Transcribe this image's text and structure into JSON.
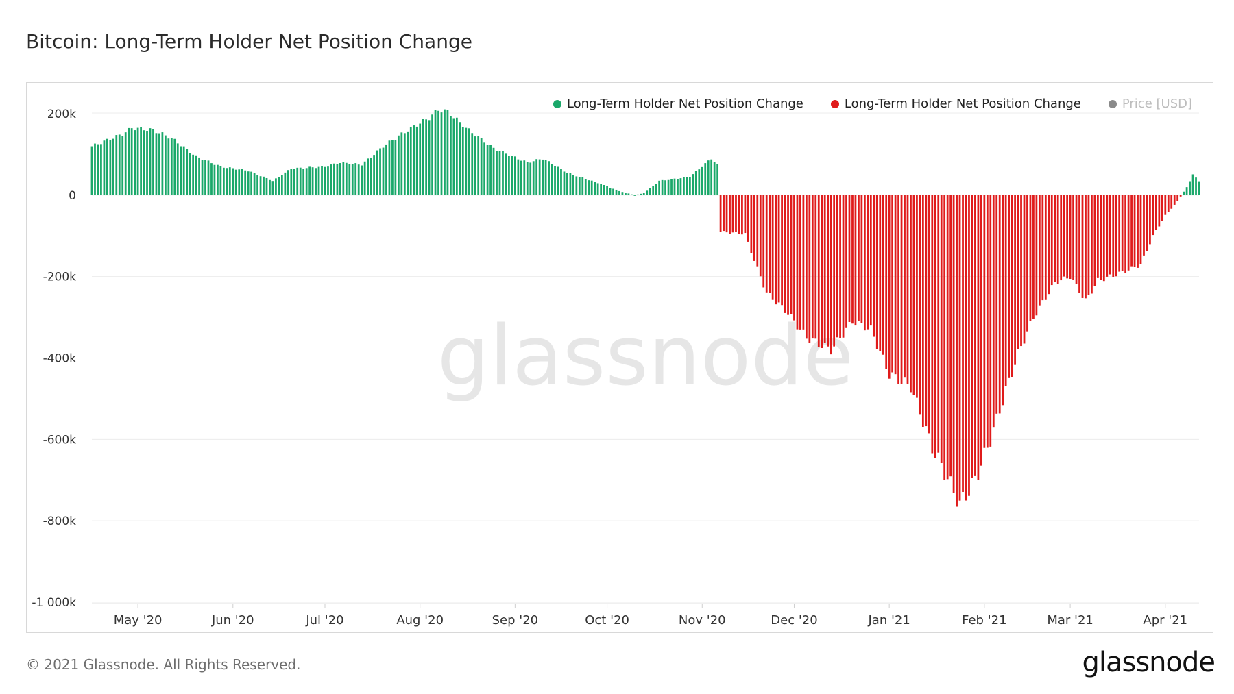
{
  "page": {
    "title": "Bitcoin: Long-Term Holder Net Position Change",
    "copyright": "© 2021 Glassnode. All Rights Reserved.",
    "brand": "glassnode",
    "watermark": "glassnode"
  },
  "legend": [
    {
      "label": "Long-Term Holder Net Position Change",
      "color": "#1aa86a"
    },
    {
      "label": "Long-Term Holder Net Position Change",
      "color": "#e01b1b"
    },
    {
      "label": "Price [USD]",
      "color": "#8a8a8a"
    }
  ],
  "chart_data": {
    "type": "bar",
    "title": "Bitcoin: Long-Term Holder Net Position Change",
    "x_start": "2020-04-16",
    "x_end": "2021-04-12",
    "ylim": [
      -1000000,
      200000
    ],
    "y_ticks": [
      {
        "value": 200000,
        "label": "200k"
      },
      {
        "value": 0,
        "label": "0"
      },
      {
        "value": -200000,
        "label": "-200k"
      },
      {
        "value": -400000,
        "label": "-400k"
      },
      {
        "value": -600000,
        "label": "-600k"
      },
      {
        "value": -800000,
        "label": "-800k"
      },
      {
        "value": -1000000,
        "label": "-1 000k"
      }
    ],
    "x_ticks": [
      {
        "date": "2020-05-01",
        "label": "May '20"
      },
      {
        "date": "2020-06-01",
        "label": "Jun '20"
      },
      {
        "date": "2020-07-01",
        "label": "Jul '20"
      },
      {
        "date": "2020-08-01",
        "label": "Aug '20"
      },
      {
        "date": "2020-09-01",
        "label": "Sep '20"
      },
      {
        "date": "2020-10-01",
        "label": "Oct '20"
      },
      {
        "date": "2020-11-01",
        "label": "Nov '20"
      },
      {
        "date": "2020-12-01",
        "label": "Dec '20"
      },
      {
        "date": "2021-01-01",
        "label": "Jan '21"
      },
      {
        "date": "2021-02-01",
        "label": "Feb '21"
      },
      {
        "date": "2021-03-01",
        "label": "Mar '21"
      },
      {
        "date": "2021-04-01",
        "label": "Apr '21"
      }
    ],
    "positive_color": "#1aa86a",
    "negative_color": "#e01b1b",
    "grid": true,
    "legend_position": "top-right",
    "keypoints": [
      {
        "date": "2020-04-16",
        "value": 120000
      },
      {
        "date": "2020-04-26",
        "value": 150000
      },
      {
        "date": "2020-04-29",
        "value": 165000
      },
      {
        "date": "2020-05-06",
        "value": 160000
      },
      {
        "date": "2020-05-12",
        "value": 140000
      },
      {
        "date": "2020-05-20",
        "value": 95000
      },
      {
        "date": "2020-05-28",
        "value": 70000
      },
      {
        "date": "2020-06-06",
        "value": 60000
      },
      {
        "date": "2020-06-14",
        "value": 35000
      },
      {
        "date": "2020-06-20",
        "value": 65000
      },
      {
        "date": "2020-07-01",
        "value": 70000
      },
      {
        "date": "2020-07-06",
        "value": 80000
      },
      {
        "date": "2020-07-13",
        "value": 75000
      },
      {
        "date": "2020-07-20",
        "value": 120000
      },
      {
        "date": "2020-07-28",
        "value": 160000
      },
      {
        "date": "2020-08-04",
        "value": 190000
      },
      {
        "date": "2020-08-07",
        "value": 210000
      },
      {
        "date": "2020-08-10",
        "value": 205000
      },
      {
        "date": "2020-08-16",
        "value": 165000
      },
      {
        "date": "2020-08-25",
        "value": 115000
      },
      {
        "date": "2020-09-05",
        "value": 80000
      },
      {
        "date": "2020-09-10",
        "value": 90000
      },
      {
        "date": "2020-09-18",
        "value": 55000
      },
      {
        "date": "2020-09-28",
        "value": 30000
      },
      {
        "date": "2020-10-05",
        "value": 10000
      },
      {
        "date": "2020-10-10",
        "value": 0
      },
      {
        "date": "2020-10-13",
        "value": 5000
      },
      {
        "date": "2020-10-18",
        "value": 35000
      },
      {
        "date": "2020-10-28",
        "value": 45000
      },
      {
        "date": "2020-11-04",
        "value": 90000
      },
      {
        "date": "2020-11-06",
        "value": 75000
      },
      {
        "date": "2020-11-07",
        "value": -90000
      },
      {
        "date": "2020-11-15",
        "value": -95000
      },
      {
        "date": "2020-11-18",
        "value": -160000
      },
      {
        "date": "2020-11-22",
        "value": -240000
      },
      {
        "date": "2020-11-29",
        "value": -290000
      },
      {
        "date": "2020-12-05",
        "value": -350000
      },
      {
        "date": "2020-12-13",
        "value": -380000
      },
      {
        "date": "2020-12-20",
        "value": -310000
      },
      {
        "date": "2020-12-26",
        "value": -330000
      },
      {
        "date": "2021-01-01",
        "value": -440000
      },
      {
        "date": "2021-01-08",
        "value": -470000
      },
      {
        "date": "2021-01-15",
        "value": -620000
      },
      {
        "date": "2021-01-19",
        "value": -680000
      },
      {
        "date": "2021-01-24",
        "value": -760000
      },
      {
        "date": "2021-01-29",
        "value": -700000
      },
      {
        "date": "2021-02-03",
        "value": -600000
      },
      {
        "date": "2021-02-08",
        "value": -480000
      },
      {
        "date": "2021-02-12",
        "value": -390000
      },
      {
        "date": "2021-02-17",
        "value": -300000
      },
      {
        "date": "2021-02-24",
        "value": -215000
      },
      {
        "date": "2021-03-01",
        "value": -200000
      },
      {
        "date": "2021-03-06",
        "value": -260000
      },
      {
        "date": "2021-03-10",
        "value": -210000
      },
      {
        "date": "2021-03-18",
        "value": -190000
      },
      {
        "date": "2021-03-24",
        "value": -170000
      },
      {
        "date": "2021-03-28",
        "value": -100000
      },
      {
        "date": "2021-04-01",
        "value": -50000
      },
      {
        "date": "2021-04-05",
        "value": -15000
      },
      {
        "date": "2021-04-08",
        "value": 20000
      },
      {
        "date": "2021-04-10",
        "value": 50000
      },
      {
        "date": "2021-04-12",
        "value": 35000
      }
    ]
  }
}
